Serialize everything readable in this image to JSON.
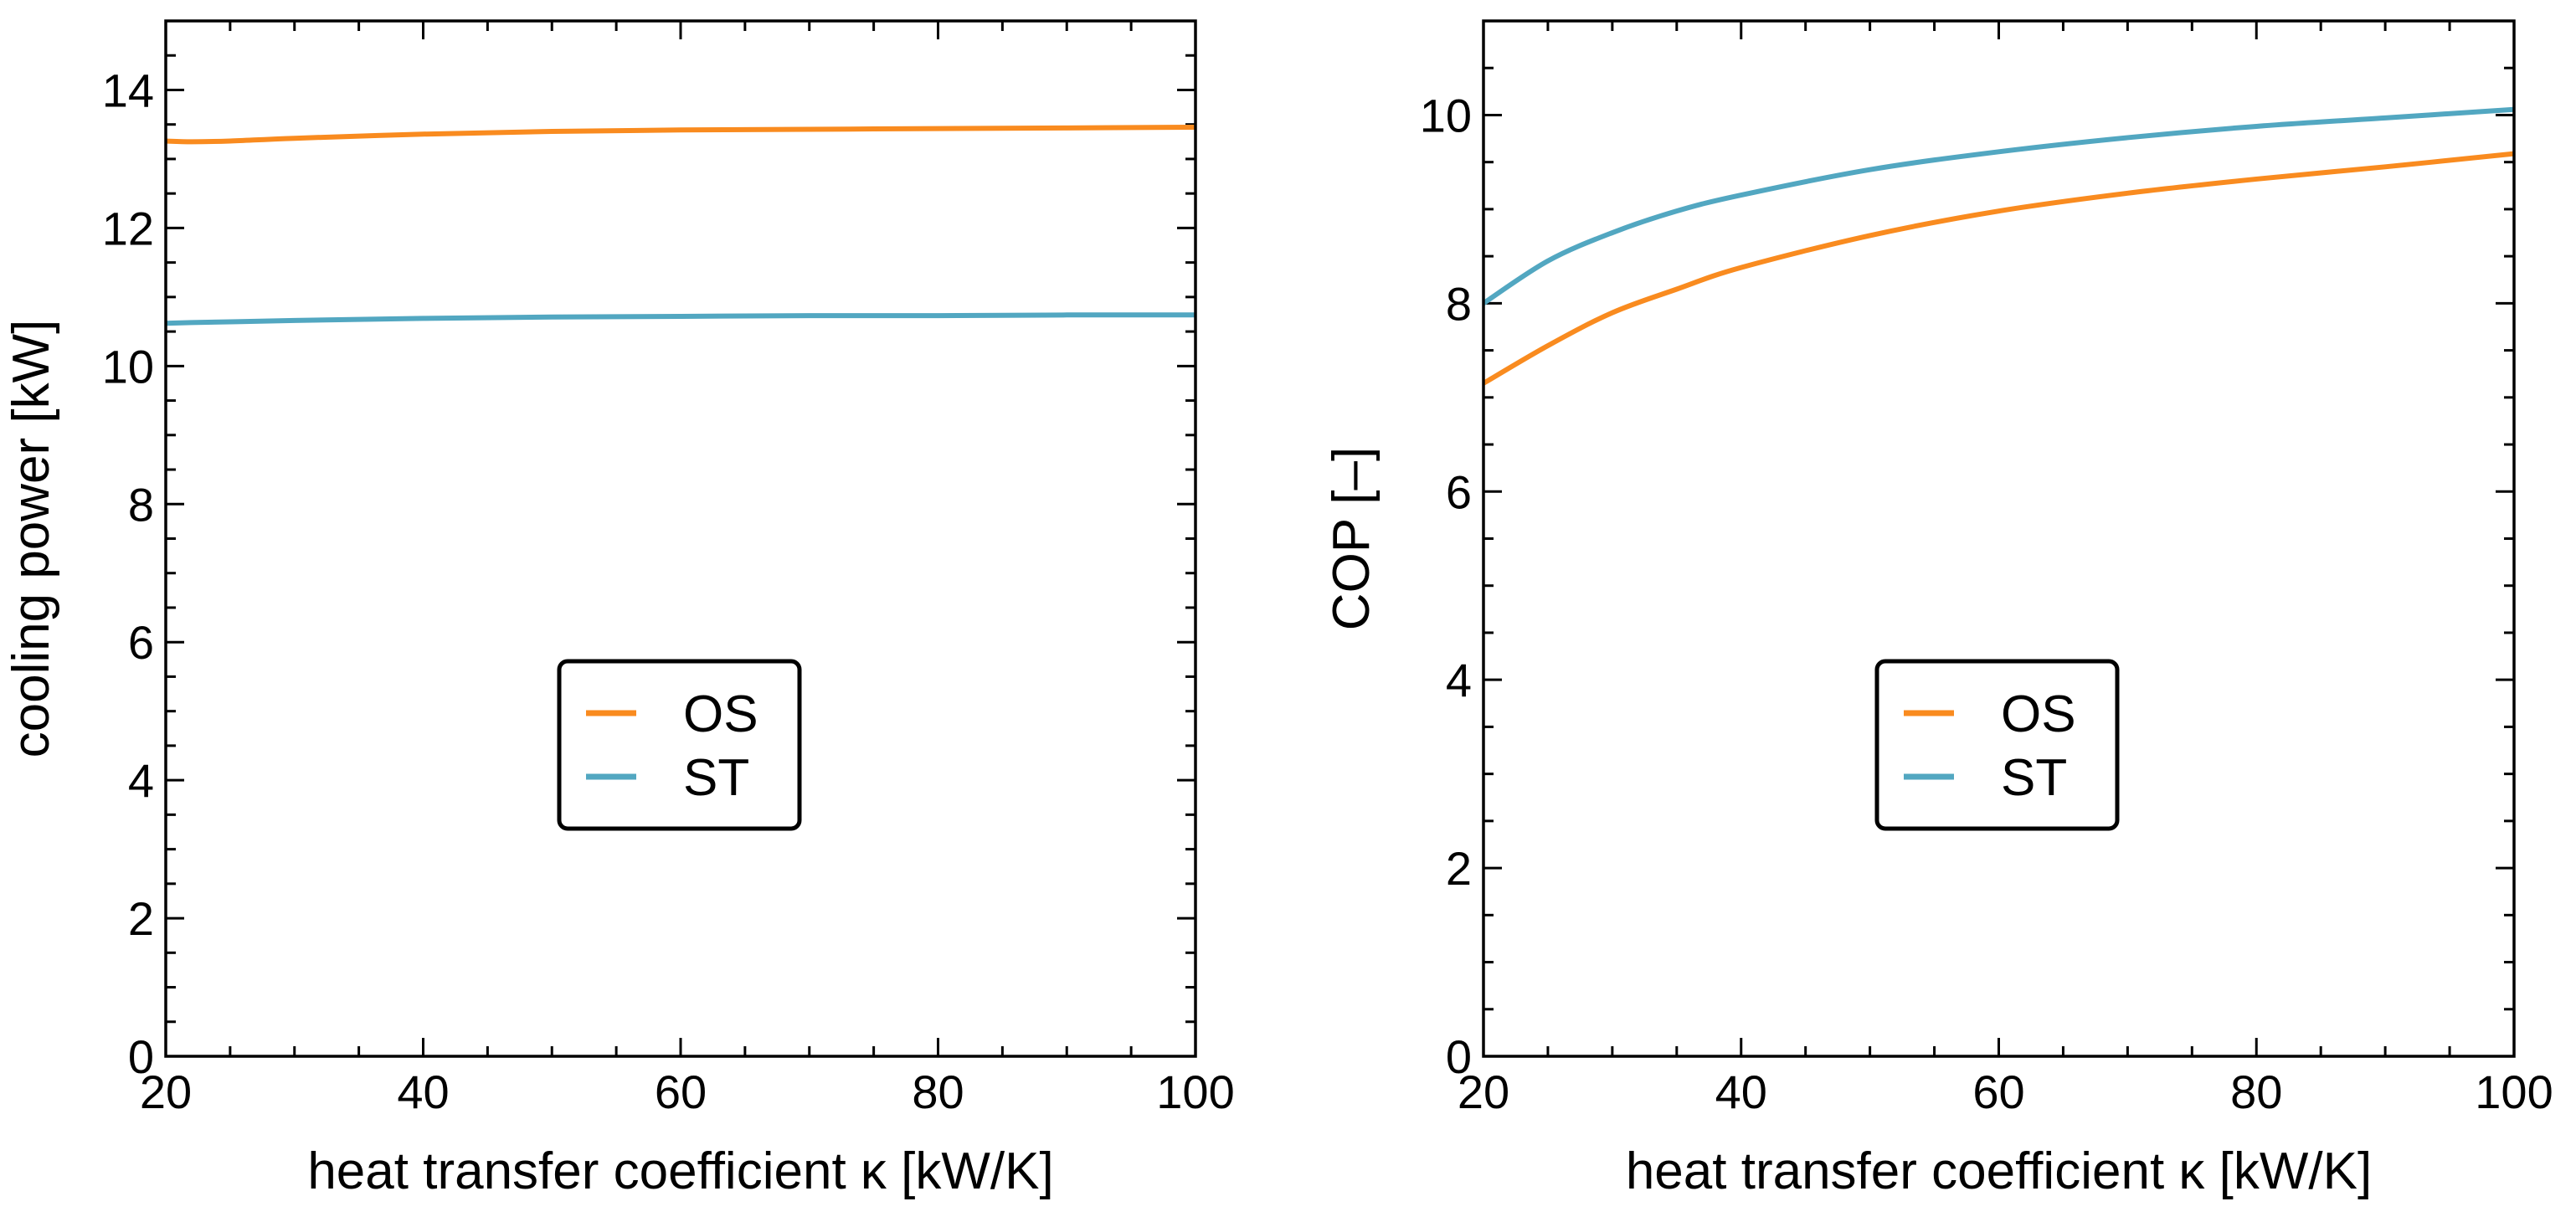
{
  "chart_data": [
    {
      "id": "left",
      "type": "line",
      "title": "",
      "xlabel": "heat transfer coefficient κ [kW/K]",
      "ylabel": "cooling power [kW]",
      "xlim": [
        20,
        100
      ],
      "ylim": [
        0,
        15
      ],
      "xticks": [
        20,
        40,
        60,
        80,
        100
      ],
      "yticks": [
        0,
        2,
        4,
        6,
        8,
        10,
        12,
        14
      ],
      "grid": false,
      "legend": {
        "placement": "center",
        "entries": [
          "OS",
          "ST"
        ]
      },
      "x": [
        20,
        22,
        25,
        30,
        40,
        50,
        60,
        70,
        80,
        90,
        100
      ],
      "series": [
        {
          "name": "OS",
          "color": "#f98b1f",
          "values": [
            13.26,
            13.25,
            13.26,
            13.3,
            13.36,
            13.4,
            13.42,
            13.43,
            13.44,
            13.45,
            13.46
          ]
        },
        {
          "name": "ST",
          "color": "#52a7c1",
          "values": [
            10.62,
            10.63,
            10.64,
            10.66,
            10.69,
            10.71,
            10.72,
            10.73,
            10.73,
            10.74,
            10.74
          ]
        }
      ]
    },
    {
      "id": "right",
      "type": "line",
      "title": "",
      "xlabel": "heat transfer coefficient κ [kW/K]",
      "ylabel": "COP [–]",
      "xlim": [
        20,
        100
      ],
      "ylim": [
        0,
        11
      ],
      "xticks": [
        20,
        40,
        60,
        80,
        100
      ],
      "yticks": [
        0,
        2,
        4,
        6,
        8,
        10
      ],
      "grid": false,
      "legend": {
        "placement": "center",
        "entries": [
          "OS",
          "ST"
        ]
      },
      "x": [
        20,
        25,
        30,
        35,
        40,
        50,
        60,
        70,
        80,
        90,
        100
      ],
      "series": [
        {
          "name": "OS",
          "color": "#f98b1f",
          "values": [
            7.15,
            7.55,
            7.9,
            8.15,
            8.38,
            8.72,
            8.98,
            9.17,
            9.32,
            9.45,
            9.59
          ]
        },
        {
          "name": "ST",
          "color": "#52a7c1",
          "values": [
            8.0,
            8.45,
            8.75,
            8.98,
            9.15,
            9.42,
            9.61,
            9.76,
            9.88,
            9.97,
            10.06
          ]
        }
      ]
    }
  ]
}
